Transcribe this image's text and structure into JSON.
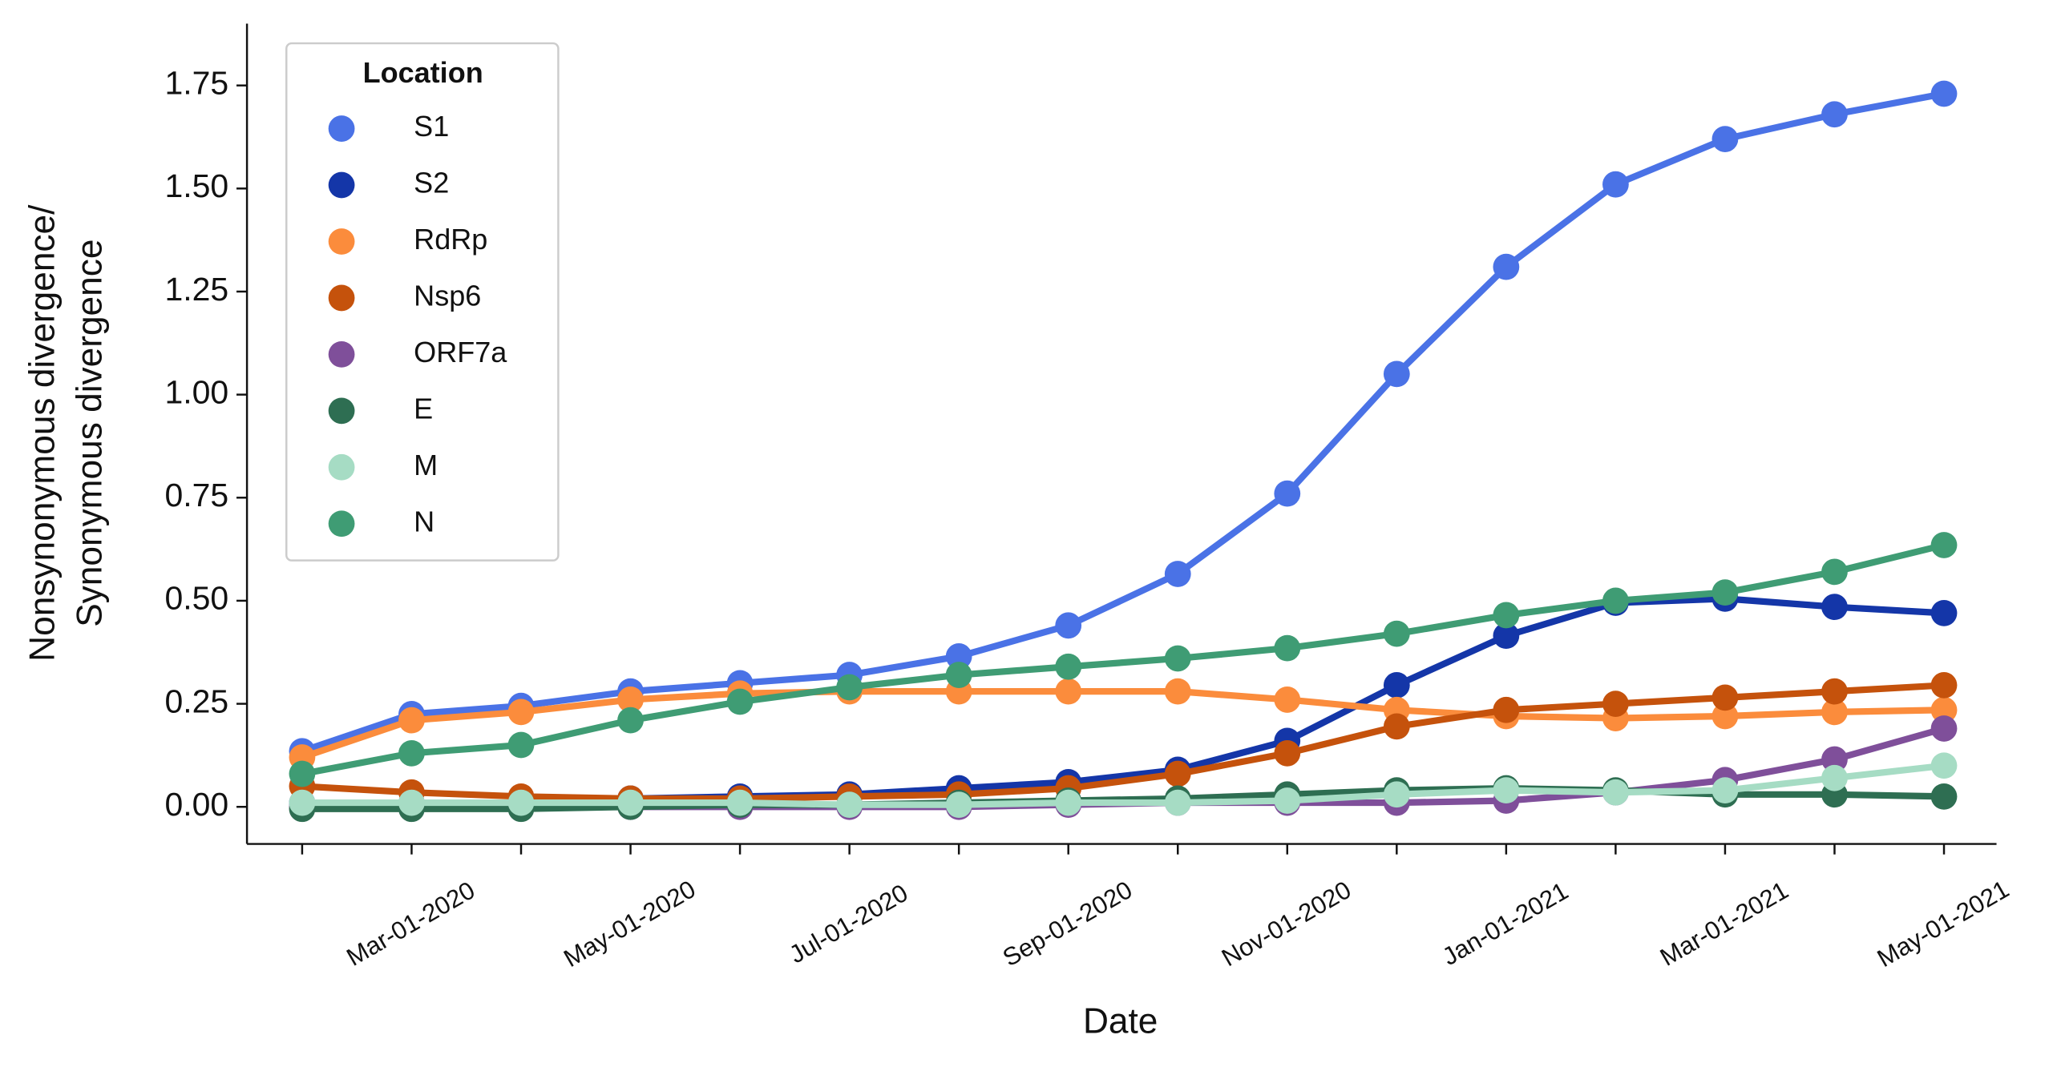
{
  "chart_data": {
    "type": "line",
    "xlabel": "Date",
    "ylabel": [
      "Nonsynonymous divergence/",
      "Synonymous divergence"
    ],
    "legend_title": "Location",
    "legend": "upper left",
    "categories": [
      null,
      "Mar-01-2020",
      null,
      "May-01-2020",
      null,
      "Jul-01-2020",
      null,
      "Sep-01-2020",
      null,
      "Nov-01-2020",
      null,
      "Jan-01-2021",
      null,
      "Mar-01-2021",
      null,
      "May-01-2021"
    ],
    "ylim": [
      -0.09,
      1.9
    ],
    "yticks": [
      {
        "value": 0,
        "label": "0.00"
      },
      {
        "value": 0.25,
        "label": "0.25"
      },
      {
        "value": 0.5,
        "label": "0.50"
      },
      {
        "value": 0.75,
        "label": "0.75"
      },
      {
        "value": 1,
        "label": "1.00"
      },
      {
        "value": 1.25,
        "label": "1.25"
      },
      {
        "value": 1.5,
        "label": "1.50"
      },
      {
        "value": 1.75,
        "label": "1.75"
      }
    ],
    "series": [
      {
        "name": "S1",
        "color": "#4a72e6",
        "values": [
          0.135,
          0.225,
          0.245,
          0.28,
          0.3,
          0.32,
          0.365,
          0.44,
          0.565,
          0.76,
          1.05,
          1.31,
          1.51,
          1.62,
          1.68,
          1.73
        ]
      },
      {
        "name": "S2",
        "color": "#1436a8",
        "values": [
          0.01,
          0.01,
          0.01,
          0.02,
          0.025,
          0.03,
          0.045,
          0.06,
          0.09,
          0.16,
          0.295,
          0.415,
          0.495,
          0.505,
          0.485,
          0.47
        ]
      },
      {
        "name": "RdRp",
        "color": "#fb8c3c",
        "values": [
          0.12,
          0.21,
          0.23,
          0.26,
          0.275,
          0.28,
          0.28,
          0.28,
          0.28,
          0.26,
          0.235,
          0.22,
          0.215,
          0.22,
          0.23,
          0.235
        ]
      },
      {
        "name": "Nsp6",
        "color": "#c5520c",
        "values": [
          0.05,
          0.035,
          0.025,
          0.02,
          0.02,
          0.025,
          0.03,
          0.045,
          0.08,
          0.13,
          0.195,
          0.235,
          0.25,
          0.265,
          0.28,
          0.295
        ]
      },
      {
        "name": "ORF7a",
        "color": "#7f4f9a",
        "values": [
          0,
          0,
          0,
          0,
          0,
          0,
          0,
          0.005,
          0.01,
          0.01,
          0.01,
          0.015,
          0.035,
          0.065,
          0.115,
          0.19
        ]
      },
      {
        "name": "E",
        "color": "#2e6e52",
        "values": [
          -0.005,
          -0.005,
          -0.005,
          0,
          0.005,
          0.005,
          0.01,
          0.015,
          0.02,
          0.03,
          0.04,
          0.045,
          0.04,
          0.03,
          0.03,
          0.025
        ]
      },
      {
        "name": "M",
        "color": "#a6dcc4",
        "values": [
          0.01,
          0.01,
          0.01,
          0.01,
          0.01,
          0.005,
          0.005,
          0.01,
          0.01,
          0.015,
          0.03,
          0.04,
          0.035,
          0.04,
          0.07,
          0.1
        ]
      },
      {
        "name": "N",
        "color": "#3f9c74",
        "values": [
          0.08,
          0.13,
          0.15,
          0.21,
          0.255,
          0.29,
          0.32,
          0.34,
          0.36,
          0.385,
          0.42,
          0.465,
          0.5,
          0.52,
          0.57,
          0.635
        ]
      }
    ]
  }
}
